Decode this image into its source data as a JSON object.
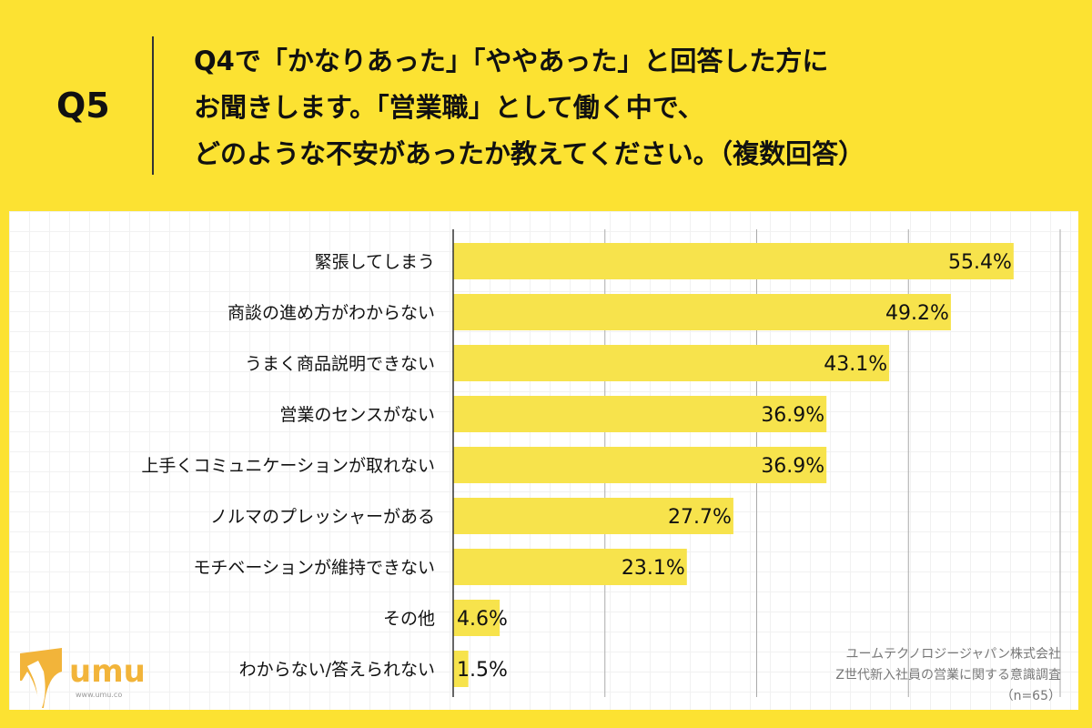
{
  "header": {
    "question_number": "Q5",
    "title_lines": [
      "Q4で「かなりあった」「ややあった」と回答した方に",
      "お聞きします。「営業職」として働く中で、",
      "どのような不安があったか教えてください。（複数回答）"
    ]
  },
  "chart_data": {
    "type": "bar",
    "orientation": "horizontal",
    "categories": [
      "緊張してしまう",
      "商談の進め方がわからない",
      "うまく商品説明できない",
      "営業のセンスがない",
      "上手くコミュニケーションが取れない",
      "ノルマのプレッシャーがある",
      "モチベーションが維持できない",
      "その他",
      "わからない/答えられない"
    ],
    "values": [
      55.4,
      49.2,
      43.1,
      36.9,
      36.9,
      27.7,
      23.1,
      4.6,
      1.5
    ],
    "value_labels": [
      "55.4%",
      "49.2%",
      "43.1%",
      "36.9%",
      "36.9%",
      "27.7%",
      "23.1%",
      "4.6%",
      "1.5%"
    ],
    "xlim": [
      0,
      60
    ],
    "grid_step": 15,
    "grid": true,
    "bar_color": "#F7E34C"
  },
  "logo": {
    "text": "umu",
    "url": "www.umu.co",
    "color": "#F2B43A"
  },
  "source": {
    "company": "ユームテクノロジージャパン株式会社",
    "survey": "Z世代新入社員の営業に関する意識調査",
    "n": "（n=65）"
  }
}
